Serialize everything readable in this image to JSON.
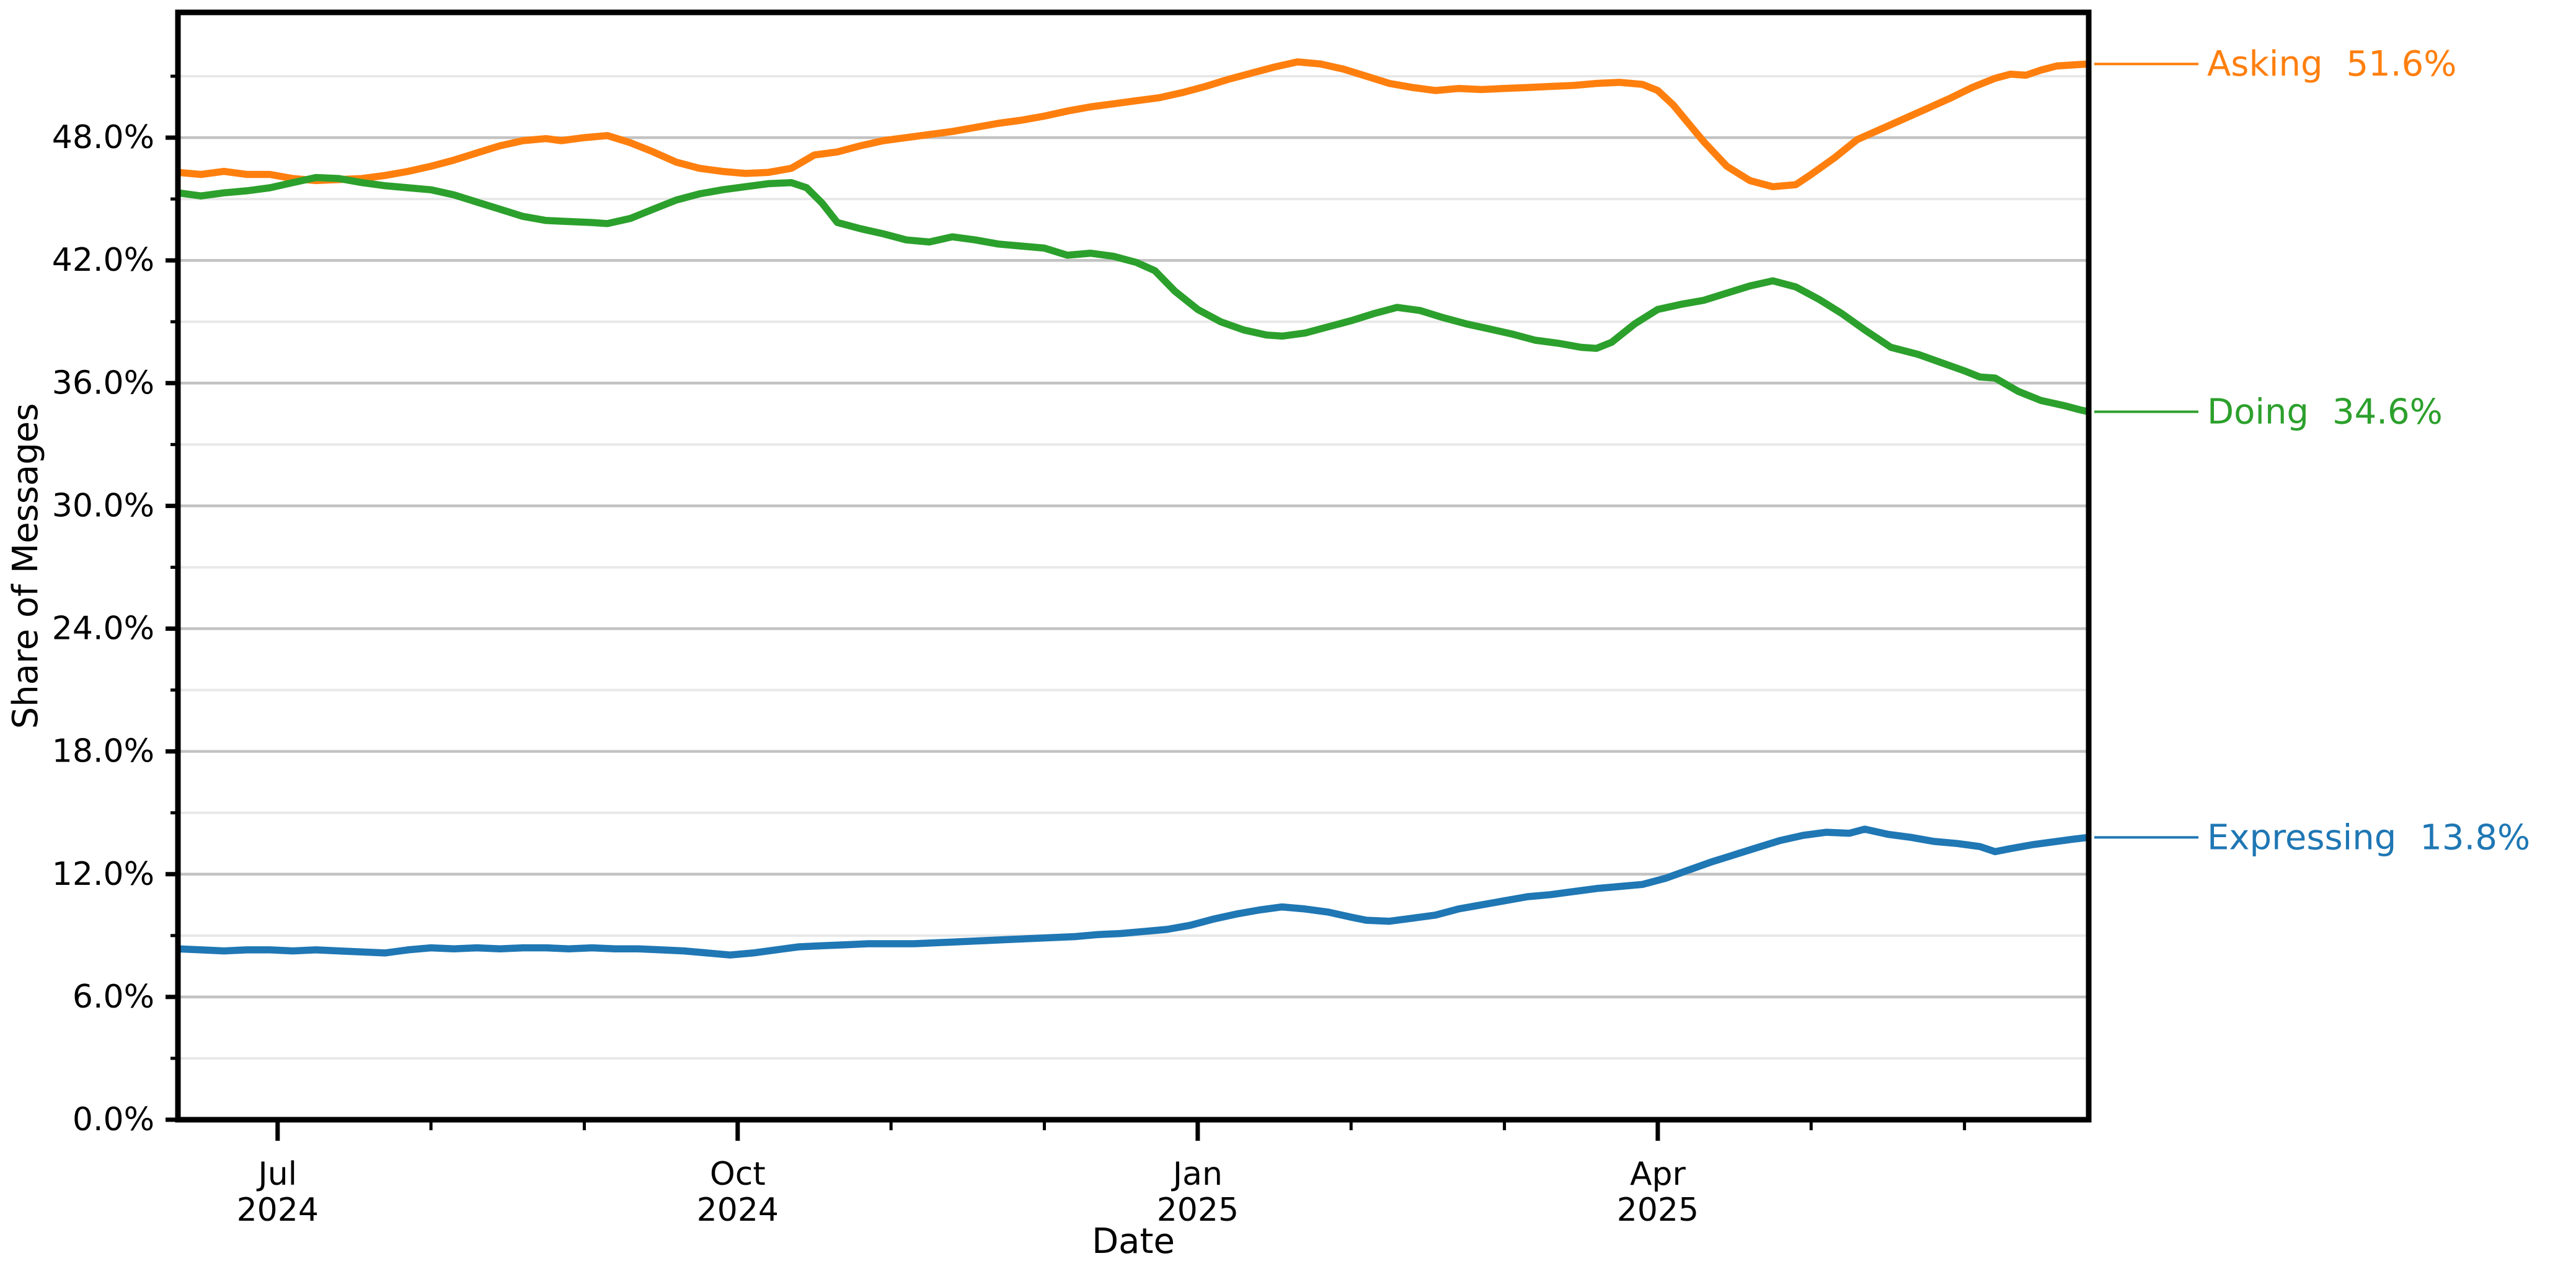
{
  "chart_data": {
    "type": "line",
    "title": "",
    "xlabel": "Date",
    "ylabel": "Share of Messages",
    "x_unit": "months since 2024-07-01 (axis spans ~Jun 10, 2024 to ~Jun 25, 2025)",
    "xlim": [
      -0.65,
      11.81
    ],
    "ylim": [
      0,
      54.12
    ],
    "grid": {
      "horizontal_major": true,
      "horizontal_minor": true,
      "vertical": false
    },
    "legend_position": "end-of-line labels in right margin",
    "y_axis": {
      "tick_format": "percent",
      "major_ticks": [
        {
          "value": 0,
          "label": "0.0%"
        },
        {
          "value": 6,
          "label": "6.0%"
        },
        {
          "value": 12,
          "label": "12.0%"
        },
        {
          "value": 18,
          "label": "18.0%"
        },
        {
          "value": 24,
          "label": "24.0%"
        },
        {
          "value": 30,
          "label": "30.0%"
        },
        {
          "value": 36,
          "label": "36.0%"
        },
        {
          "value": 42,
          "label": "42.0%"
        },
        {
          "value": 48,
          "label": "48.0%"
        }
      ],
      "minor_tick_values": [
        3,
        9,
        15,
        21,
        27,
        33,
        39,
        45,
        51
      ]
    },
    "x_axis": {
      "major_ticks": [
        {
          "m": 0,
          "label_line1": "Jul",
          "label_line2": "2024"
        },
        {
          "m": 3,
          "label_line1": "Oct",
          "label_line2": "2024"
        },
        {
          "m": 6,
          "label_line1": "Jan",
          "label_line2": "2025"
        },
        {
          "m": 9,
          "label_line1": "Apr",
          "label_line2": "2025"
        }
      ],
      "minor_tick_m": [
        1,
        2,
        4,
        5,
        7,
        8,
        10,
        11
      ]
    },
    "series": [
      {
        "name": "Asking",
        "color": "#ff7f0e",
        "end_label": "Asking",
        "end_value": "51.6%",
        "points": [
          [
            -0.65,
            46.3
          ],
          [
            -0.5,
            46.2
          ],
          [
            -0.35,
            46.35
          ],
          [
            -0.2,
            46.2
          ],
          [
            -0.05,
            46.2
          ],
          [
            0.1,
            46.0
          ],
          [
            0.25,
            45.9
          ],
          [
            0.4,
            45.95
          ],
          [
            0.55,
            46.0
          ],
          [
            0.7,
            46.15
          ],
          [
            0.85,
            46.35
          ],
          [
            1.0,
            46.6
          ],
          [
            1.15,
            46.9
          ],
          [
            1.3,
            47.25
          ],
          [
            1.45,
            47.6
          ],
          [
            1.6,
            47.85
          ],
          [
            1.75,
            47.95
          ],
          [
            1.85,
            47.85
          ],
          [
            2.0,
            48.0
          ],
          [
            2.15,
            48.1
          ],
          [
            2.3,
            47.75
          ],
          [
            2.45,
            47.3
          ],
          [
            2.6,
            46.8
          ],
          [
            2.75,
            46.5
          ],
          [
            2.9,
            46.35
          ],
          [
            3.05,
            46.25
          ],
          [
            3.2,
            46.3
          ],
          [
            3.35,
            46.5
          ],
          [
            3.5,
            47.15
          ],
          [
            3.65,
            47.3
          ],
          [
            3.8,
            47.6
          ],
          [
            3.95,
            47.85
          ],
          [
            4.1,
            48.0
          ],
          [
            4.25,
            48.15
          ],
          [
            4.4,
            48.3
          ],
          [
            4.55,
            48.5
          ],
          [
            4.7,
            48.7
          ],
          [
            4.85,
            48.85
          ],
          [
            5.0,
            49.05
          ],
          [
            5.15,
            49.3
          ],
          [
            5.3,
            49.5
          ],
          [
            5.45,
            49.65
          ],
          [
            5.6,
            49.8
          ],
          [
            5.75,
            49.95
          ],
          [
            5.9,
            50.2
          ],
          [
            6.05,
            50.5
          ],
          [
            6.2,
            50.85
          ],
          [
            6.35,
            51.15
          ],
          [
            6.5,
            51.45
          ],
          [
            6.65,
            51.7
          ],
          [
            6.8,
            51.6
          ],
          [
            6.95,
            51.35
          ],
          [
            7.1,
            51.0
          ],
          [
            7.25,
            50.65
          ],
          [
            7.4,
            50.45
          ],
          [
            7.55,
            50.3
          ],
          [
            7.7,
            50.4
          ],
          [
            7.85,
            50.35
          ],
          [
            8.0,
            50.4
          ],
          [
            8.15,
            50.45
          ],
          [
            8.3,
            50.5
          ],
          [
            8.45,
            50.55
          ],
          [
            8.6,
            50.65
          ],
          [
            8.75,
            50.7
          ],
          [
            8.9,
            50.6
          ],
          [
            9.0,
            50.3
          ],
          [
            9.1,
            49.6
          ],
          [
            9.2,
            48.7
          ],
          [
            9.3,
            47.8
          ],
          [
            9.45,
            46.6
          ],
          [
            9.6,
            45.9
          ],
          [
            9.75,
            45.6
          ],
          [
            9.9,
            45.7
          ],
          [
            10.0,
            46.2
          ],
          [
            10.15,
            47.0
          ],
          [
            10.3,
            47.9
          ],
          [
            10.45,
            48.4
          ],
          [
            10.6,
            48.9
          ],
          [
            10.75,
            49.4
          ],
          [
            10.9,
            49.9
          ],
          [
            11.05,
            50.45
          ],
          [
            11.2,
            50.9
          ],
          [
            11.3,
            51.1
          ],
          [
            11.4,
            51.05
          ],
          [
            11.5,
            51.3
          ],
          [
            11.6,
            51.5
          ],
          [
            11.7,
            51.55
          ],
          [
            11.81,
            51.6
          ]
        ]
      },
      {
        "name": "Doing",
        "color": "#2ca02c",
        "end_label": "Doing",
        "end_value": "34.6%",
        "points": [
          [
            -0.65,
            45.3
          ],
          [
            -0.5,
            45.15
          ],
          [
            -0.35,
            45.3
          ],
          [
            -0.2,
            45.4
          ],
          [
            -0.05,
            45.55
          ],
          [
            0.1,
            45.8
          ],
          [
            0.25,
            46.05
          ],
          [
            0.4,
            46.0
          ],
          [
            0.55,
            45.8
          ],
          [
            0.7,
            45.65
          ],
          [
            0.85,
            45.55
          ],
          [
            1.0,
            45.45
          ],
          [
            1.15,
            45.2
          ],
          [
            1.3,
            44.85
          ],
          [
            1.45,
            44.5
          ],
          [
            1.6,
            44.15
          ],
          [
            1.75,
            43.95
          ],
          [
            1.9,
            43.9
          ],
          [
            2.05,
            43.85
          ],
          [
            2.15,
            43.8
          ],
          [
            2.3,
            44.05
          ],
          [
            2.45,
            44.5
          ],
          [
            2.6,
            44.95
          ],
          [
            2.75,
            45.25
          ],
          [
            2.9,
            45.45
          ],
          [
            3.05,
            45.6
          ],
          [
            3.2,
            45.75
          ],
          [
            3.35,
            45.8
          ],
          [
            3.45,
            45.55
          ],
          [
            3.55,
            44.8
          ],
          [
            3.65,
            43.85
          ],
          [
            3.8,
            43.55
          ],
          [
            3.95,
            43.3
          ],
          [
            4.1,
            43.0
          ],
          [
            4.25,
            42.9
          ],
          [
            4.4,
            43.15
          ],
          [
            4.55,
            43.0
          ],
          [
            4.7,
            42.8
          ],
          [
            4.85,
            42.7
          ],
          [
            5.0,
            42.6
          ],
          [
            5.15,
            42.25
          ],
          [
            5.3,
            42.35
          ],
          [
            5.45,
            42.2
          ],
          [
            5.6,
            41.9
          ],
          [
            5.72,
            41.5
          ],
          [
            5.85,
            40.5
          ],
          [
            6.0,
            39.6
          ],
          [
            6.15,
            39.0
          ],
          [
            6.3,
            38.6
          ],
          [
            6.45,
            38.35
          ],
          [
            6.55,
            38.3
          ],
          [
            6.7,
            38.45
          ],
          [
            6.85,
            38.75
          ],
          [
            7.0,
            39.05
          ],
          [
            7.15,
            39.4
          ],
          [
            7.3,
            39.7
          ],
          [
            7.45,
            39.55
          ],
          [
            7.6,
            39.2
          ],
          [
            7.75,
            38.9
          ],
          [
            7.9,
            38.65
          ],
          [
            8.05,
            38.4
          ],
          [
            8.2,
            38.1
          ],
          [
            8.35,
            37.95
          ],
          [
            8.5,
            37.75
          ],
          [
            8.6,
            37.7
          ],
          [
            8.7,
            38.0
          ],
          [
            8.85,
            38.9
          ],
          [
            9.0,
            39.6
          ],
          [
            9.15,
            39.85
          ],
          [
            9.3,
            40.05
          ],
          [
            9.45,
            40.4
          ],
          [
            9.6,
            40.75
          ],
          [
            9.75,
            41.0
          ],
          [
            9.9,
            40.7
          ],
          [
            10.05,
            40.1
          ],
          [
            10.2,
            39.4
          ],
          [
            10.35,
            38.6
          ],
          [
            10.52,
            37.75
          ],
          [
            10.7,
            37.4
          ],
          [
            10.85,
            37.0
          ],
          [
            11.0,
            36.6
          ],
          [
            11.1,
            36.3
          ],
          [
            11.2,
            36.25
          ],
          [
            11.35,
            35.6
          ],
          [
            11.5,
            35.15
          ],
          [
            11.65,
            34.9
          ],
          [
            11.75,
            34.7
          ],
          [
            11.81,
            34.6
          ]
        ]
      },
      {
        "name": "Expressing",
        "color": "#1f77b4",
        "end_label": "Expressing",
        "end_value": "13.8%",
        "points": [
          [
            -0.65,
            8.35
          ],
          [
            -0.5,
            8.3
          ],
          [
            -0.35,
            8.25
          ],
          [
            -0.2,
            8.3
          ],
          [
            -0.05,
            8.3
          ],
          [
            0.1,
            8.25
          ],
          [
            0.25,
            8.3
          ],
          [
            0.4,
            8.25
          ],
          [
            0.55,
            8.2
          ],
          [
            0.7,
            8.15
          ],
          [
            0.85,
            8.3
          ],
          [
            1.0,
            8.4
          ],
          [
            1.15,
            8.35
          ],
          [
            1.3,
            8.4
          ],
          [
            1.45,
            8.35
          ],
          [
            1.6,
            8.4
          ],
          [
            1.75,
            8.4
          ],
          [
            1.9,
            8.35
          ],
          [
            2.05,
            8.4
          ],
          [
            2.2,
            8.35
          ],
          [
            2.35,
            8.35
          ],
          [
            2.5,
            8.3
          ],
          [
            2.65,
            8.25
          ],
          [
            2.8,
            8.15
          ],
          [
            2.95,
            8.05
          ],
          [
            3.1,
            8.15
          ],
          [
            3.25,
            8.3
          ],
          [
            3.4,
            8.45
          ],
          [
            3.55,
            8.5
          ],
          [
            3.7,
            8.55
          ],
          [
            3.85,
            8.6
          ],
          [
            4.0,
            8.6
          ],
          [
            4.15,
            8.6
          ],
          [
            4.3,
            8.65
          ],
          [
            4.45,
            8.7
          ],
          [
            4.6,
            8.75
          ],
          [
            4.75,
            8.8
          ],
          [
            4.9,
            8.85
          ],
          [
            5.05,
            8.9
          ],
          [
            5.2,
            8.95
          ],
          [
            5.35,
            9.05
          ],
          [
            5.5,
            9.1
          ],
          [
            5.65,
            9.2
          ],
          [
            5.8,
            9.3
          ],
          [
            5.95,
            9.5
          ],
          [
            6.1,
            9.8
          ],
          [
            6.25,
            10.05
          ],
          [
            6.4,
            10.25
          ],
          [
            6.55,
            10.4
          ],
          [
            6.7,
            10.3
          ],
          [
            6.85,
            10.15
          ],
          [
            7.0,
            9.9
          ],
          [
            7.1,
            9.75
          ],
          [
            7.25,
            9.7
          ],
          [
            7.4,
            9.85
          ],
          [
            7.55,
            10.0
          ],
          [
            7.7,
            10.3
          ],
          [
            7.85,
            10.5
          ],
          [
            8.0,
            10.7
          ],
          [
            8.15,
            10.9
          ],
          [
            8.3,
            11.0
          ],
          [
            8.45,
            11.15
          ],
          [
            8.6,
            11.3
          ],
          [
            8.75,
            11.4
          ],
          [
            8.9,
            11.5
          ],
          [
            9.05,
            11.8
          ],
          [
            9.2,
            12.2
          ],
          [
            9.35,
            12.6
          ],
          [
            9.5,
            12.95
          ],
          [
            9.65,
            13.3
          ],
          [
            9.8,
            13.65
          ],
          [
            9.95,
            13.9
          ],
          [
            10.1,
            14.05
          ],
          [
            10.25,
            14.0
          ],
          [
            10.35,
            14.2
          ],
          [
            10.5,
            13.95
          ],
          [
            10.65,
            13.8
          ],
          [
            10.8,
            13.6
          ],
          [
            10.95,
            13.5
          ],
          [
            11.1,
            13.35
          ],
          [
            11.2,
            13.1
          ],
          [
            11.3,
            13.25
          ],
          [
            11.45,
            13.45
          ],
          [
            11.6,
            13.6
          ],
          [
            11.7,
            13.7
          ],
          [
            11.81,
            13.8
          ]
        ]
      }
    ]
  },
  "colors": {
    "background": "#ffffff",
    "grid_major": "#c2c2c2",
    "grid_minor": "#e8e8e8",
    "spine": "#000000",
    "tick": "#000000",
    "tick_label": "#000000"
  }
}
